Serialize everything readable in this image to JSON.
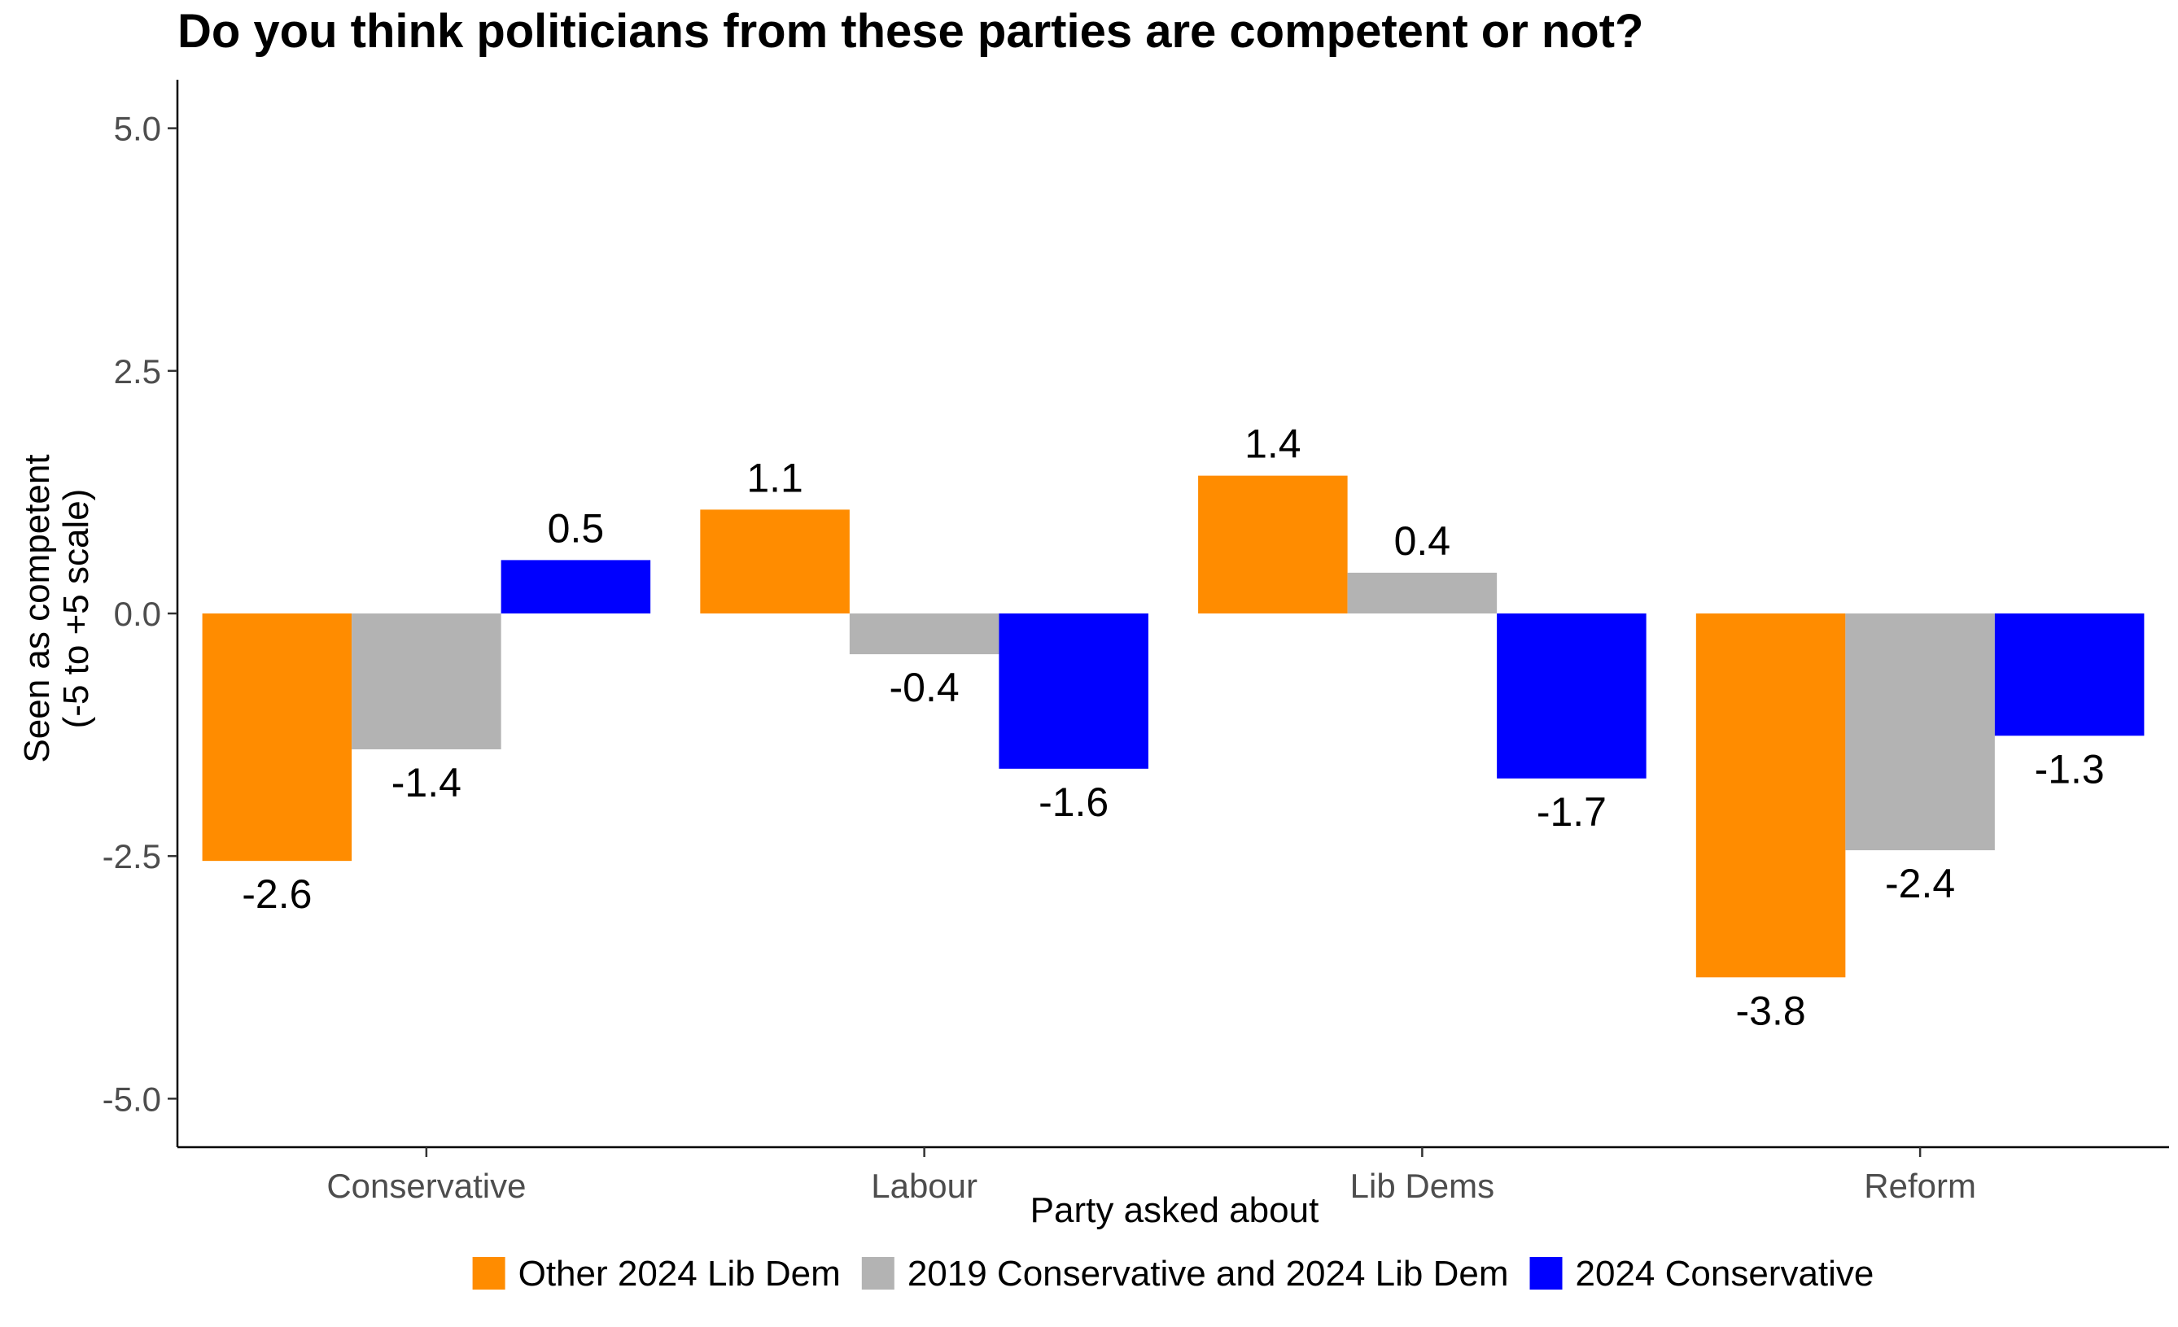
{
  "chart_data": {
    "type": "bar",
    "title": "Do you think politicians from these parties are competent or not?",
    "xlabel": "Party asked about",
    "ylabel_lines": [
      "Seen as competent",
      "(-5 to +5 scale)"
    ],
    "categories": [
      "Conservative",
      "Labour",
      "Lib Dems",
      "Reform"
    ],
    "ylim": [
      -5.5,
      5.5
    ],
    "y_ticks": [
      -5.0,
      -2.5,
      0.0,
      2.5,
      5.0
    ],
    "y_tick_labels": [
      "-5.0",
      "-2.5",
      "0.0",
      "2.5",
      "5.0"
    ],
    "grid": false,
    "legend_position": "bottom",
    "series": [
      {
        "name": "Other 2024 Lib Dem",
        "color": "#FF8C00",
        "values": [
          -2.55,
          1.07,
          1.42,
          -3.75
        ],
        "labels": [
          "-2.6",
          "1.1",
          "1.4",
          "-3.8"
        ]
      },
      {
        "name": "2019 Conservative and 2024 Lib Dem",
        "color": "#B3B3B3",
        "values": [
          -1.4,
          -0.42,
          0.42,
          -2.44
        ],
        "labels": [
          "-1.4",
          "-0.4",
          "0.4",
          "-2.4"
        ]
      },
      {
        "name": "2024 Conservative",
        "color": "#0000FF",
        "values": [
          0.55,
          -1.6,
          -1.7,
          -1.26
        ],
        "labels": [
          "0.5",
          "-1.6",
          "-1.7",
          "-1.3"
        ]
      }
    ]
  }
}
